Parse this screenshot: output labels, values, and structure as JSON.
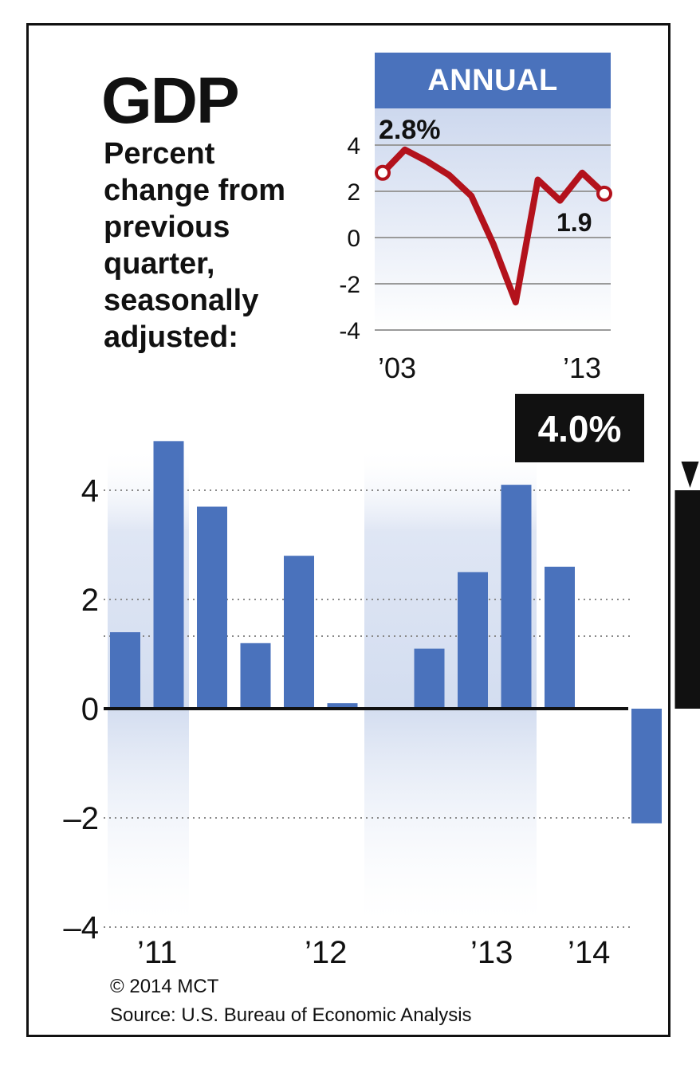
{
  "title": "GDP",
  "subtitle": "Percent change from previous quarter, seasonally adjusted:",
  "footer": {
    "copyright": "© 2014 MCT",
    "source": "Source: U.S. Bureau of Economic Analysis"
  },
  "colors": {
    "bar": "#4a72bc",
    "highlight_bar": "#111111",
    "annual_line": "#b3121c",
    "header_bg": "#4a72bc",
    "band_shade": "#d3ddf0"
  },
  "chart_data": [
    {
      "type": "line",
      "title": "ANNUAL",
      "x": [
        2003,
        2004,
        2005,
        2006,
        2007,
        2008,
        2009,
        2010,
        2011,
        2012,
        2013
      ],
      "series": [
        {
          "values": [
            2.8,
            3.8,
            3.3,
            2.7,
            1.8,
            -0.3,
            -2.8,
            2.5,
            1.6,
            2.8,
            1.9
          ]
        }
      ],
      "x_tick_labels": [
        "’03",
        "’13"
      ],
      "annotations": [
        {
          "x": 2003,
          "label": "2.8%"
        },
        {
          "x": 2013,
          "label": "1.9"
        }
      ],
      "y_ticks": [
        4,
        2,
        0,
        -2,
        -4
      ],
      "y_tick_labels": [
        "4",
        "2",
        "0",
        "-2",
        "-4"
      ],
      "ylim": [
        -4,
        4
      ],
      "grid": true
    },
    {
      "type": "bar",
      "categories": [
        "2011 Q1",
        "2011 Q2",
        "2011 Q3",
        "2011 Q4",
        "2012 Q1",
        "2012 Q2",
        "2012 Q3",
        "2012 Q4",
        "2013 Q1",
        "2013 Q2",
        "2013 Q3",
        "2013 Q4",
        "2014 Q1",
        "2014 Q2"
      ],
      "values": [
        1.4,
        4.9,
        3.7,
        1.2,
        2.8,
        0.1,
        0,
        1.1,
        2.5,
        4.1,
        2.6,
        0,
        -2.1,
        4.0
      ],
      "highlight": {
        "category": "2014 Q2",
        "label": "4.0%"
      },
      "x_tick_labels": [
        "’11",
        "’12",
        "’13",
        "’14"
      ],
      "y_ticks": [
        4,
        2,
        0,
        -2,
        -4
      ],
      "y_tick_labels": [
        "4",
        "2",
        "0",
        "–2",
        "–4"
      ],
      "ylim": [
        -4,
        5
      ],
      "grid": true
    }
  ]
}
